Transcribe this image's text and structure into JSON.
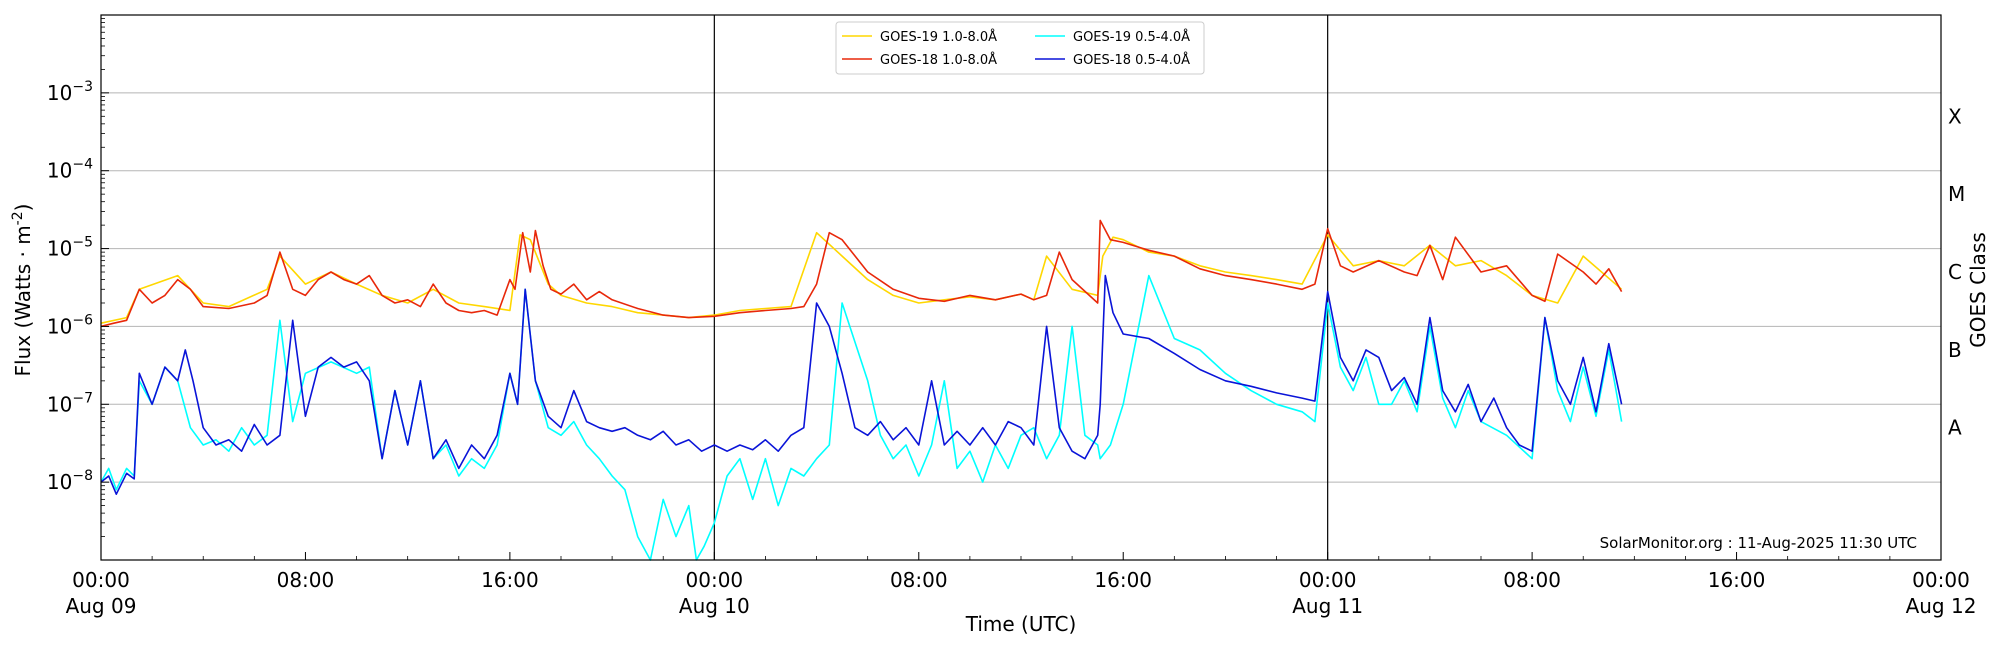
{
  "chart_data": {
    "type": "line",
    "title": "",
    "xlabel": "Time (UTC)",
    "ylabel_main": "Flux (Watts · m",
    "ylabel_sup": "-2",
    "ylabel_close": ")",
    "right_ylabel": "GOES Class",
    "y_scale": "log",
    "ylim": [
      1e-09,
      0.01
    ],
    "xlim_hours": [
      0,
      72
    ],
    "y_ticks": [
      {
        "exp": -8,
        "base": "10",
        "sup": "−8"
      },
      {
        "exp": -7,
        "base": "10",
        "sup": "−7"
      },
      {
        "exp": -6,
        "base": "10",
        "sup": "−6"
      },
      {
        "exp": -5,
        "base": "10",
        "sup": "−5"
      },
      {
        "exp": -4,
        "base": "10",
        "sup": "−4"
      },
      {
        "exp": -3,
        "base": "10",
        "sup": "−3"
      }
    ],
    "x_ticks": [
      {
        "hours": 0,
        "time": "00:00",
        "date": "Aug 09"
      },
      {
        "hours": 8,
        "time": "08:00",
        "date": ""
      },
      {
        "hours": 16,
        "time": "16:00",
        "date": ""
      },
      {
        "hours": 24,
        "time": "00:00",
        "date": "Aug 10"
      },
      {
        "hours": 32,
        "time": "08:00",
        "date": ""
      },
      {
        "hours": 40,
        "time": "16:00",
        "date": ""
      },
      {
        "hours": 48,
        "time": "00:00",
        "date": "Aug 11"
      },
      {
        "hours": 56,
        "time": "08:00",
        "date": ""
      },
      {
        "hours": 64,
        "time": "16:00",
        "date": ""
      },
      {
        "hours": 72,
        "time": "00:00",
        "date": "Aug 12"
      }
    ],
    "day_boundaries_hours": [
      24,
      48
    ],
    "goes_classes": [
      {
        "label": "A",
        "flux": 5e-08
      },
      {
        "label": "B",
        "flux": 5e-07
      },
      {
        "label": "C",
        "flux": 5e-06
      },
      {
        "label": "M",
        "flux": 5e-05
      },
      {
        "label": "X",
        "flux": 0.0005
      }
    ],
    "grid": true,
    "legend_position": "top-center",
    "series": [
      {
        "name": "GOES-19 1.0-8.0Å",
        "color": "#ffd700",
        "hours": [
          0,
          1,
          1.5,
          3,
          4,
          5,
          6.5,
          7,
          8,
          9,
          10,
          11,
          12,
          13,
          14,
          15,
          16,
          16.4,
          16.8,
          17.5,
          18,
          19,
          20,
          21,
          22,
          23,
          24,
          25,
          26,
          27,
          28,
          29,
          30,
          31,
          32,
          33,
          34,
          35,
          36,
          36.5,
          37,
          38,
          39,
          39.2,
          39.6,
          40,
          41,
          42,
          43,
          44,
          45,
          46,
          47,
          48,
          49,
          50,
          51,
          52,
          53,
          54,
          55,
          56,
          57,
          58,
          59.5
        ],
        "values": [
          1.1e-06,
          1.3e-06,
          3e-06,
          4.5e-06,
          2e-06,
          1.8e-06,
          3e-06,
          8e-06,
          3.5e-06,
          5e-06,
          3.5e-06,
          2.5e-06,
          2e-06,
          3e-06,
          2e-06,
          1.8e-06,
          1.6e-06,
          1.5e-05,
          1.3e-05,
          3.5e-06,
          2.5e-06,
          2e-06,
          1.8e-06,
          1.5e-06,
          1.4e-06,
          1.3e-06,
          1.4e-06,
          1.6e-06,
          1.7e-06,
          1.8e-06,
          1.6e-05,
          8e-06,
          4e-06,
          2.5e-06,
          2e-06,
          2.2e-06,
          2.4e-06,
          2.2e-06,
          2.6e-06,
          2.2e-06,
          8e-06,
          3e-06,
          2.5e-06,
          8e-06,
          1.4e-05,
          1.3e-05,
          9e-06,
          8e-06,
          6e-06,
          5e-06,
          4.5e-06,
          4e-06,
          3.5e-06,
          1.5e-05,
          6e-06,
          7e-06,
          6e-06,
          1.1e-05,
          6e-06,
          7e-06,
          4.5e-06,
          2.5e-06,
          2e-06,
          8e-06,
          3e-06
        ]
      },
      {
        "name": "GOES-18 1.0-8.0Å",
        "color": "#e8280a",
        "hours": [
          0,
          0.5,
          1,
          1.5,
          2,
          2.5,
          3,
          3.5,
          4,
          5,
          6,
          6.5,
          7,
          7.5,
          8,
          8.5,
          9,
          9.5,
          10,
          10.5,
          11,
          11.5,
          12,
          12.5,
          13,
          13.5,
          14,
          14.5,
          15,
          15.5,
          16,
          16.2,
          16.5,
          16.8,
          17,
          17.3,
          17.6,
          18,
          18.5,
          19,
          19.5,
          20,
          21,
          22,
          23,
          24,
          25,
          26,
          27,
          27.5,
          28,
          28.5,
          29,
          30,
          31,
          32,
          33,
          34,
          35,
          36,
          36.5,
          37,
          37.5,
          38,
          39,
          39.1,
          39.5,
          40,
          41,
          42,
          43,
          44,
          45,
          46,
          47,
          47.5,
          48,
          48.5,
          49,
          50,
          51,
          51.5,
          52,
          52.5,
          53,
          54,
          55,
          56,
          56.5,
          57,
          58,
          58.5,
          59,
          59.5
        ],
        "values": [
          1e-06,
          1.1e-06,
          1.2e-06,
          3e-06,
          2e-06,
          2.5e-06,
          4e-06,
          3e-06,
          1.8e-06,
          1.7e-06,
          2e-06,
          2.5e-06,
          9e-06,
          3e-06,
          2.5e-06,
          4e-06,
          5e-06,
          4e-06,
          3.5e-06,
          4.5e-06,
          2.5e-06,
          2e-06,
          2.2e-06,
          1.8e-06,
          3.5e-06,
          2e-06,
          1.6e-06,
          1.5e-06,
          1.6e-06,
          1.4e-06,
          4e-06,
          3e-06,
          1.6e-05,
          5e-06,
          1.7e-05,
          6e-06,
          3e-06,
          2.6e-06,
          3.5e-06,
          2.2e-06,
          2.8e-06,
          2.2e-06,
          1.7e-06,
          1.4e-06,
          1.3e-06,
          1.35e-06,
          1.5e-06,
          1.6e-06,
          1.7e-06,
          1.8e-06,
          3.5e-06,
          1.6e-05,
          1.3e-05,
          5e-06,
          3e-06,
          2.3e-06,
          2.1e-06,
          2.5e-06,
          2.2e-06,
          2.6e-06,
          2.2e-06,
          2.5e-06,
          9e-06,
          4e-06,
          2e-06,
          2.3e-05,
          1.3e-05,
          1.2e-05,
          9.5e-06,
          8e-06,
          5.5e-06,
          4.5e-06,
          4e-06,
          3.5e-06,
          3e-06,
          3.5e-06,
          1.8e-05,
          6e-06,
          5e-06,
          7e-06,
          5e-06,
          4.5e-06,
          1.1e-05,
          4e-06,
          1.4e-05,
          5e-06,
          6e-06,
          2.5e-06,
          2.1e-06,
          8.5e-06,
          5e-06,
          3.5e-06,
          5.5e-06,
          2.8e-06
        ]
      },
      {
        "name": "GOES-19 0.5-4.0Å",
        "color": "#00ffff",
        "hours": [
          0,
          0.3,
          0.6,
          1,
          1.3,
          1.5,
          2,
          2.5,
          3,
          3.5,
          4,
          4.5,
          5,
          5.5,
          6,
          6.5,
          7,
          7.5,
          8,
          9,
          10,
          10.5,
          11,
          11.5,
          12,
          12.5,
          13,
          13.5,
          14,
          14.5,
          15,
          15.5,
          16,
          16.3,
          16.6,
          17,
          17.5,
          18,
          18.5,
          19,
          19.5,
          20,
          20.5,
          21,
          21.5,
          22,
          22.5,
          23,
          23.3,
          23.6,
          24,
          24.5,
          25,
          25.5,
          26,
          26.5,
          27,
          27.5,
          28,
          28.5,
          29,
          30,
          30.5,
          31,
          31.5,
          32,
          32.5,
          33,
          33.5,
          34,
          34.5,
          35,
          35.5,
          36,
          36.5,
          37,
          37.5,
          38,
          38.5,
          39,
          39.1,
          39.5,
          40,
          41,
          42,
          43,
          44,
          45,
          46,
          47,
          47.5,
          48,
          48.5,
          49,
          49.5,
          50,
          50.5,
          51,
          51.5,
          52,
          52.5,
          53,
          53.5,
          54,
          55,
          56,
          56.5,
          57,
          57.5,
          58,
          58.5,
          59,
          59.5
        ],
        "values": [
          1e-08,
          1.5e-08,
          8e-09,
          1.5e-08,
          1.2e-08,
          2e-07,
          1e-07,
          3e-07,
          2e-07,
          5e-08,
          3e-08,
          3.5e-08,
          2.5e-08,
          5e-08,
          3e-08,
          4e-08,
          1.2e-06,
          6e-08,
          2.5e-07,
          3.5e-07,
          2.5e-07,
          3e-07,
          2e-08,
          1.5e-07,
          3e-08,
          2e-07,
          2e-08,
          3e-08,
          1.2e-08,
          2e-08,
          1.5e-08,
          3e-08,
          2.5e-07,
          1e-07,
          3e-06,
          2e-07,
          5e-08,
          4e-08,
          6e-08,
          3e-08,
          2e-08,
          1.2e-08,
          8e-09,
          2e-09,
          1e-09,
          6e-09,
          2e-09,
          5e-09,
          1e-09,
          1.5e-09,
          3e-09,
          1.2e-08,
          2e-08,
          6e-09,
          2e-08,
          5e-09,
          1.5e-08,
          1.2e-08,
          2e-08,
          3e-08,
          2e-06,
          2e-07,
          4e-08,
          2e-08,
          3e-08,
          1.2e-08,
          3e-08,
          2e-07,
          1.5e-08,
          2.5e-08,
          1e-08,
          3e-08,
          1.5e-08,
          4e-08,
          5e-08,
          2e-08,
          4e-08,
          1e-06,
          4e-08,
          3e-08,
          2e-08,
          3e-08,
          1e-07,
          4.5e-06,
          7e-07,
          5e-07,
          2.5e-07,
          1.5e-07,
          1e-07,
          8e-08,
          6e-08,
          2e-06,
          3e-07,
          1.5e-07,
          4e-07,
          1e-07,
          1e-07,
          2e-07,
          8e-08,
          1e-06,
          1.2e-07,
          5e-08,
          1.5e-07,
          6e-08,
          4e-08,
          2e-08,
          1.3e-06,
          1.5e-07,
          6e-08,
          3e-07,
          7e-08,
          5e-07,
          6e-08
        ]
      },
      {
        "name": "GOES-18 0.5-4.0Å",
        "color": "#0a14d8",
        "hours": [
          0,
          0.3,
          0.6,
          1,
          1.3,
          1.5,
          2,
          2.5,
          3,
          3.3,
          3.6,
          4,
          4.5,
          5,
          5.5,
          6,
          6.5,
          7,
          7.5,
          8,
          8.5,
          9,
          9.5,
          10,
          10.5,
          11,
          11.5,
          12,
          12.5,
          13,
          13.5,
          14,
          14.5,
          15,
          15.5,
          16,
          16.3,
          16.6,
          17,
          17.5,
          18,
          18.5,
          19,
          19.5,
          20,
          20.5,
          21,
          21.5,
          22,
          22.5,
          23,
          23.5,
          24,
          24.5,
          25,
          25.5,
          26,
          26.5,
          27,
          27.5,
          28,
          28.5,
          29,
          29.5,
          30,
          30.5,
          31,
          31.5,
          32,
          32.5,
          33,
          33.5,
          34,
          34.5,
          35,
          35.5,
          36,
          36.5,
          37,
          37.5,
          38,
          38.5,
          39,
          39.1,
          39.3,
          39.6,
          40,
          41,
          42,
          43,
          44,
          45,
          46,
          47,
          47.5,
          48,
          48.5,
          49,
          49.5,
          50,
          50.5,
          51,
          51.5,
          52,
          52.5,
          53,
          53.5,
          54,
          54.5,
          55,
          55.5,
          56,
          56.5,
          57,
          57.5,
          58,
          58.5,
          59,
          59.5
        ],
        "values": [
          1e-08,
          1.2e-08,
          7e-09,
          1.3e-08,
          1.1e-08,
          2.5e-07,
          1e-07,
          3e-07,
          2e-07,
          5e-07,
          2e-07,
          5e-08,
          3e-08,
          3.5e-08,
          2.5e-08,
          5.5e-08,
          3e-08,
          4e-08,
          1.2e-06,
          7e-08,
          3e-07,
          4e-07,
          3e-07,
          3.5e-07,
          2e-07,
          2e-08,
          1.5e-07,
          3e-08,
          2e-07,
          2e-08,
          3.5e-08,
          1.5e-08,
          3e-08,
          2e-08,
          4e-08,
          2.5e-07,
          1e-07,
          3e-06,
          2e-07,
          7e-08,
          5e-08,
          1.5e-07,
          6e-08,
          5e-08,
          4.5e-08,
          5e-08,
          4e-08,
          3.5e-08,
          4.5e-08,
          3e-08,
          3.5e-08,
          2.5e-08,
          3e-08,
          2.5e-08,
          3e-08,
          2.6e-08,
          3.5e-08,
          2.5e-08,
          4e-08,
          5e-08,
          2e-06,
          1e-06,
          2.5e-07,
          5e-08,
          4e-08,
          6e-08,
          3.5e-08,
          5e-08,
          3e-08,
          2e-07,
          3e-08,
          4.5e-08,
          3e-08,
          5e-08,
          3e-08,
          6e-08,
          5e-08,
          3e-08,
          1e-06,
          5e-08,
          2.5e-08,
          2e-08,
          4e-08,
          1e-07,
          4.5e-06,
          1.5e-06,
          8e-07,
          7e-07,
          4.5e-07,
          2.8e-07,
          2e-07,
          1.7e-07,
          1.4e-07,
          1.2e-07,
          1.1e-07,
          2.8e-06,
          4e-07,
          2e-07,
          5e-07,
          4e-07,
          1.5e-07,
          2.2e-07,
          1e-07,
          1.3e-06,
          1.5e-07,
          8e-08,
          1.8e-07,
          6e-08,
          1.2e-07,
          5e-08,
          3e-08,
          2.5e-08,
          1.3e-06,
          2e-07,
          1e-07,
          4e-07,
          8e-08,
          6e-07,
          1e-07
        ]
      }
    ]
  },
  "credit": "SolarMonitor.org : 11-Aug-2025 11:30 UTC"
}
